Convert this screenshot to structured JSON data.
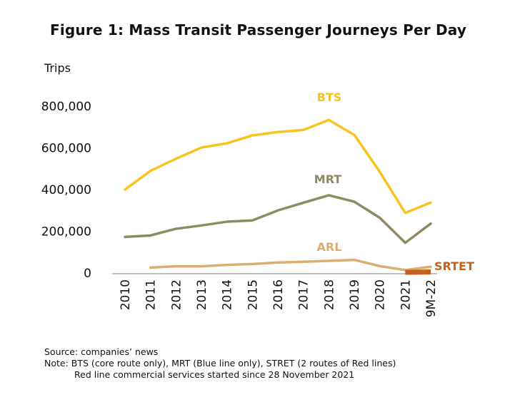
{
  "chart_data": {
    "type": "line",
    "title": "Figure 1: Mass Transit Passenger Journeys Per Day",
    "ylabel": "Trips",
    "ylim": [
      0,
      800000
    ],
    "yticks": [
      0,
      200000,
      400000,
      600000,
      800000
    ],
    "ytick_labels": [
      "0",
      "200,000",
      "400,000",
      "600,000",
      "800,000"
    ],
    "categories": [
      "2010",
      "2011",
      "2012",
      "2013",
      "2014",
      "2015",
      "2016",
      "2017",
      "2018",
      "2019",
      "2020",
      "2021",
      "9M-22"
    ],
    "grid": false,
    "legend": "inline labels",
    "series": [
      {
        "name": "BTS",
        "color": "#F8C21F",
        "values": [
          400000,
          490000,
          548000,
          602000,
          622000,
          660000,
          676000,
          686000,
          734000,
          662000,
          485000,
          288000,
          338000
        ]
      },
      {
        "name": "MRT",
        "color": "#8E8A62",
        "values": [
          173000,
          180000,
          212000,
          228000,
          246000,
          252000,
          300000,
          337000,
          373000,
          342000,
          265000,
          145000,
          237000
        ]
      },
      {
        "name": "ARL",
        "color": "#D9AE70",
        "values": [
          null,
          26000,
          32000,
          32000,
          39000,
          43000,
          50000,
          54000,
          58000,
          63000,
          33000,
          14000,
          30000
        ]
      },
      {
        "name": "SRTET",
        "color": "#C7601A",
        "values": [
          null,
          null,
          null,
          null,
          null,
          null,
          null,
          null,
          null,
          null,
          null,
          3000,
          5000
        ]
      }
    ]
  },
  "notes": {
    "source": "Source: companies’ news",
    "note": "Note: BTS (core route only),  MRT (Blue line only), STRET (2 routes of Red lines)",
    "note2": "Red line commercial services started since 28 November 2021"
  }
}
